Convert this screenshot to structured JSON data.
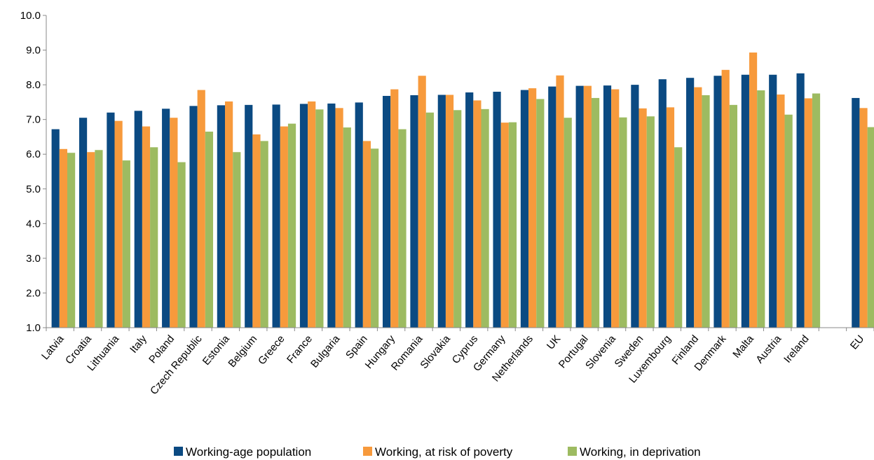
{
  "chart_data": {
    "type": "bar",
    "ylim": [
      1.0,
      10.0
    ],
    "yticks": [
      "1.0",
      "2.0",
      "3.0",
      "4.0",
      "5.0",
      "6.0",
      "7.0",
      "8.0",
      "9.0",
      "10.0"
    ],
    "grid": false,
    "legend_position": "bottom",
    "categories": [
      "Latvia",
      "Croatia",
      "Lithuania",
      "Italy",
      "Poland",
      "Czech Republic",
      "Estonia",
      "Belgium",
      "Greece",
      "France",
      "Bulgaria",
      "Spain",
      "Hungary",
      "Romania",
      "Slovakia",
      "Cyprus",
      "Germany",
      "Netherlands",
      "UK",
      "Portugal",
      "Slovenia",
      "Sweden",
      "Luxembourg",
      "Finland",
      "Denmark",
      "Malta",
      "Austria",
      "Ireland",
      "",
      "EU"
    ],
    "series": [
      {
        "name": "Working-age population",
        "color": "#0b4a82",
        "values": [
          6.72,
          7.05,
          7.2,
          7.25,
          7.31,
          7.39,
          7.41,
          7.42,
          7.43,
          7.45,
          7.46,
          7.49,
          7.68,
          7.7,
          7.71,
          7.78,
          7.8,
          7.85,
          7.95,
          7.97,
          7.98,
          8.0,
          8.16,
          8.2,
          8.26,
          8.29,
          8.29,
          8.33,
          null,
          7.62
        ]
      },
      {
        "name": "Working, at risk of poverty",
        "color": "#f79a3c",
        "values": [
          6.15,
          6.06,
          6.96,
          6.8,
          7.05,
          7.85,
          7.52,
          6.57,
          6.8,
          7.52,
          7.33,
          6.38,
          7.87,
          8.26,
          7.71,
          7.55,
          6.91,
          7.9,
          8.27,
          7.97,
          7.87,
          7.32,
          7.35,
          7.93,
          8.43,
          8.93,
          7.72,
          7.61,
          null,
          7.33
        ]
      },
      {
        "name": "Working, in deprivation",
        "color": "#9dbb61",
        "values": [
          6.04,
          6.12,
          5.82,
          6.2,
          5.77,
          6.65,
          6.06,
          6.38,
          6.88,
          7.29,
          6.77,
          6.16,
          6.72,
          7.2,
          7.27,
          7.3,
          6.92,
          7.59,
          7.05,
          7.62,
          7.06,
          7.09,
          6.2,
          7.7,
          7.42,
          7.84,
          7.14,
          7.75,
          null,
          6.78
        ]
      }
    ]
  }
}
